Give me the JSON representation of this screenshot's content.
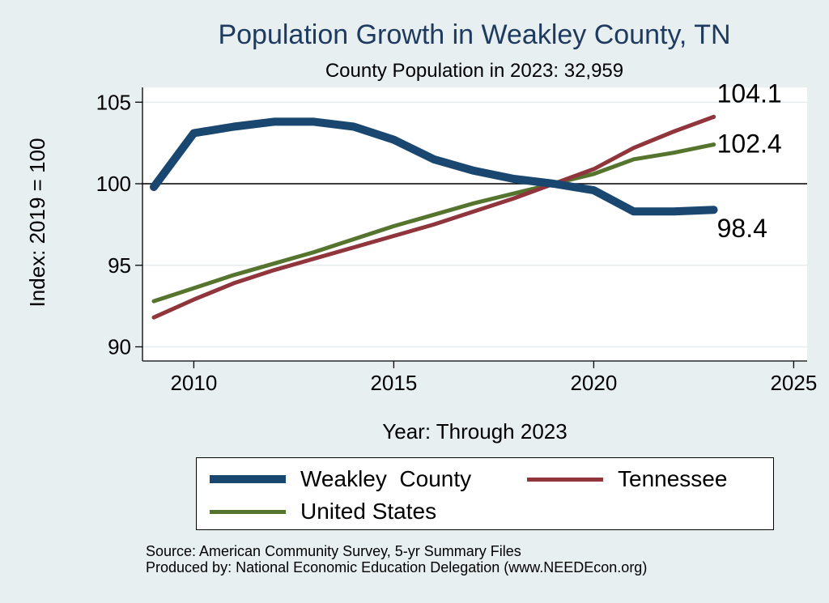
{
  "chart_data": {
    "type": "line",
    "title": "Population Growth in Weakley County, TN",
    "subtitle": "County Population in 2023: 32,959",
    "xlabel": "Year: Through 2023",
    "ylabel": "Index: 2019 = 100",
    "xlim": [
      2009,
      2025
    ],
    "ylim": [
      90,
      106
    ],
    "x_ticks": [
      2010,
      2015,
      2020,
      2025
    ],
    "y_ticks": [
      90,
      95,
      100,
      105
    ],
    "reference_line": 100,
    "x": [
      2009,
      2010,
      2011,
      2012,
      2013,
      2014,
      2015,
      2016,
      2017,
      2018,
      2019,
      2020,
      2021,
      2022,
      2023
    ],
    "series": [
      {
        "name": "Weakley  County",
        "color": "#1a476f",
        "stroke": 10,
        "values": [
          99.8,
          103.1,
          103.5,
          103.8,
          103.8,
          103.5,
          102.7,
          101.5,
          100.8,
          100.3,
          100.0,
          99.6,
          98.3,
          98.3,
          98.4
        ],
        "end_label": "98.4"
      },
      {
        "name": "Tennessee",
        "color": "#90353b",
        "stroke": 5,
        "values": [
          91.8,
          92.9,
          93.9,
          94.7,
          95.4,
          96.1,
          96.8,
          97.5,
          98.3,
          99.1,
          100.0,
          100.9,
          102.2,
          103.2,
          104.1
        ],
        "end_label": "104.1"
      },
      {
        "name": "United States",
        "color": "#55752f",
        "stroke": 5,
        "values": [
          92.8,
          93.6,
          94.4,
          95.1,
          95.8,
          96.6,
          97.4,
          98.1,
          98.8,
          99.4,
          100.0,
          100.6,
          101.5,
          101.9,
          102.4
        ],
        "end_label": "102.4"
      }
    ],
    "legend": [
      {
        "label": "Weakley  County",
        "color": "#1a476f"
      },
      {
        "label": "Tennessee",
        "color": "#90353b"
      },
      {
        "label": "United States",
        "color": "#55752f"
      }
    ]
  },
  "notes": {
    "source": "Source: American Community Survey, 5-yr Summary Files",
    "produced": "Produced by: National Economic Education Delegation (www.NEEDEcon.org)"
  }
}
